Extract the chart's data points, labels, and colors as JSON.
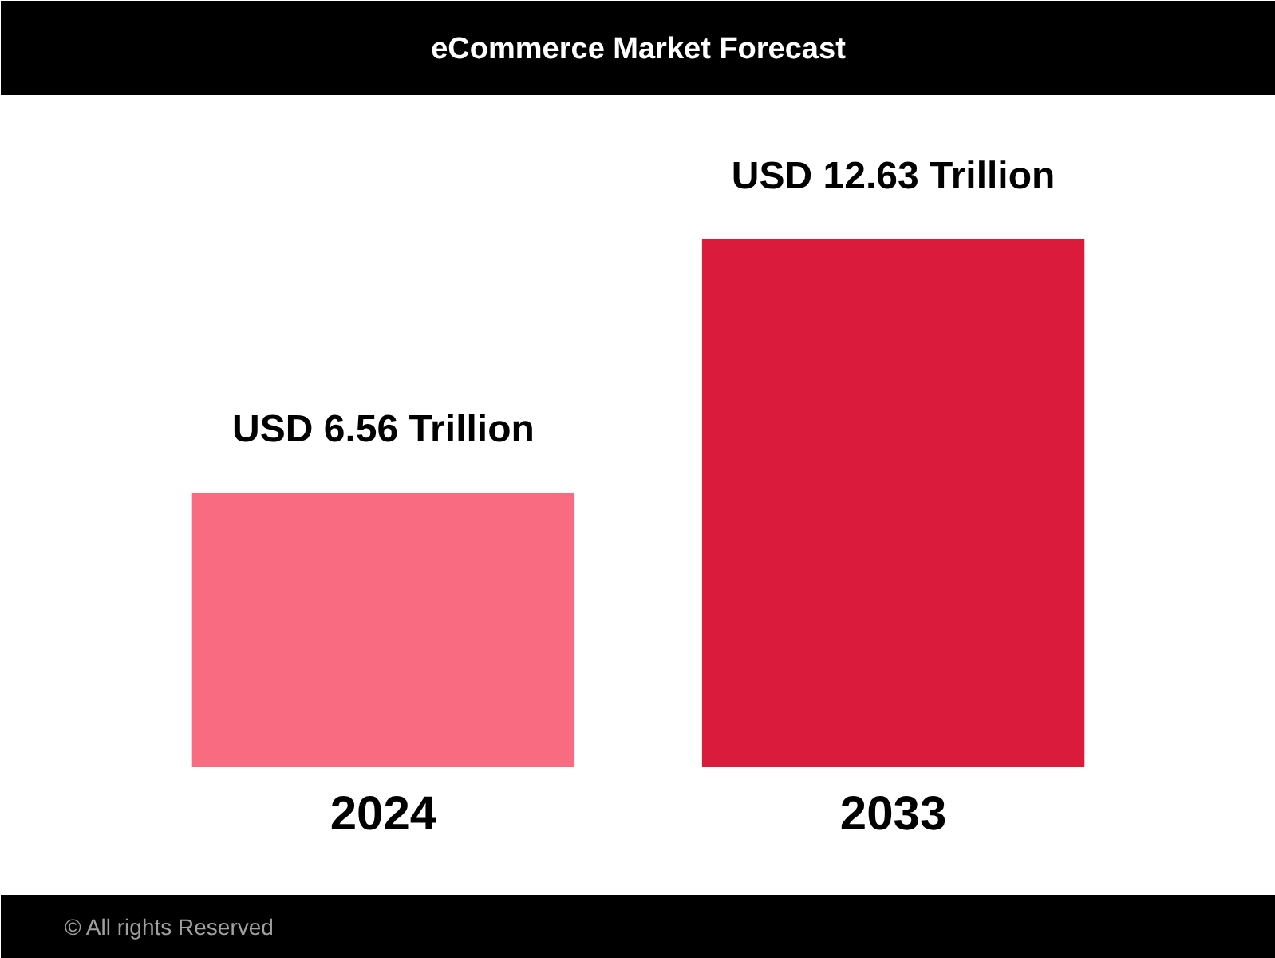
{
  "chart_data": {
    "type": "bar",
    "title": "eCommerce Market Forecast",
    "categories": [
      "2024",
      "2033"
    ],
    "values": [
      6.56,
      12.63
    ],
    "colors": [
      "#f86b80",
      "#da1b3c"
    ],
    "value_labels": [
      "USD 6.56 Trillion",
      "USD 12.63 Trillion"
    ],
    "tick_labels": "x",
    "annotations": [
      "© All rights Reserved"
    ]
  }
}
